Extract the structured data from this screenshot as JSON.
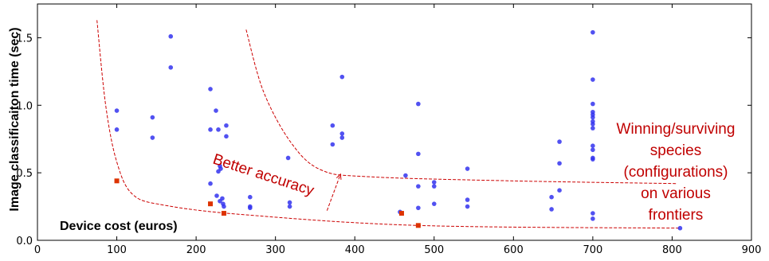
{
  "chart_data": {
    "type": "scatter",
    "title": "",
    "xlabel": "Device cost (euros)",
    "ylabel": "Image classificaiton time (sec)",
    "xlim": [
      0,
      900
    ],
    "ylim": [
      0,
      1.75
    ],
    "xticks": [
      "0",
      "100",
      "200",
      "300",
      "400",
      "500",
      "600",
      "700",
      "800",
      "900"
    ],
    "yticks": [
      "0.0",
      "0.5",
      "1.0",
      "1.5"
    ],
    "grid": false,
    "series": [
      {
        "color": "#3333ee",
        "points": [
          [
            100,
            0.96
          ],
          [
            100,
            0.82
          ],
          [
            100,
            0.44
          ],
          [
            145,
            0.91
          ],
          [
            145,
            0.76
          ],
          [
            168,
            1.51
          ],
          [
            168,
            1.28
          ],
          [
            218,
            1.12
          ],
          [
            218,
            0.82
          ],
          [
            218,
            0.42
          ],
          [
            225,
            0.96
          ],
          [
            228,
            0.82
          ],
          [
            230,
            0.55
          ],
          [
            231,
            0.53
          ],
          [
            228,
            0.51
          ],
          [
            226,
            0.33
          ],
          [
            230,
            0.29
          ],
          [
            233,
            0.31
          ],
          [
            234,
            0.27
          ],
          [
            238,
            0.85
          ],
          [
            238,
            0.77
          ],
          [
            235,
            0.25
          ],
          [
            268,
            0.32
          ],
          [
            268,
            0.25
          ],
          [
            268,
            0.24
          ],
          [
            316,
            0.61
          ],
          [
            318,
            0.28
          ],
          [
            318,
            0.25
          ],
          [
            372,
            0.85
          ],
          [
            372,
            0.71
          ],
          [
            384,
            1.21
          ],
          [
            384,
            0.79
          ],
          [
            384,
            0.76
          ],
          [
            457,
            0.21
          ],
          [
            464,
            0.48
          ],
          [
            480,
            1.01
          ],
          [
            480,
            0.64
          ],
          [
            480,
            0.4
          ],
          [
            480,
            0.24
          ],
          [
            500,
            0.43
          ],
          [
            500,
            0.4
          ],
          [
            500,
            0.27
          ],
          [
            542,
            0.53
          ],
          [
            542,
            0.3
          ],
          [
            542,
            0.25
          ],
          [
            648,
            0.32
          ],
          [
            648,
            0.23
          ],
          [
            658,
            0.73
          ],
          [
            658,
            0.57
          ],
          [
            658,
            0.37
          ],
          [
            700,
            1.54
          ],
          [
            700,
            1.19
          ],
          [
            700,
            1.01
          ],
          [
            700,
            0.95
          ],
          [
            700,
            0.93
          ],
          [
            700,
            0.91
          ],
          [
            700,
            0.88
          ],
          [
            700,
            0.86
          ],
          [
            700,
            0.83
          ],
          [
            700,
            0.7
          ],
          [
            700,
            0.67
          ],
          [
            700,
            0.61
          ],
          [
            700,
            0.6
          ],
          [
            700,
            0.2
          ],
          [
            700,
            0.16
          ],
          [
            810,
            0.09
          ]
        ]
      },
      {
        "color": "#dd3300",
        "marker": "square",
        "points": [
          [
            100,
            0.44
          ],
          [
            218,
            0.27
          ],
          [
            235,
            0.2
          ],
          [
            459,
            0.2
          ],
          [
            480,
            0.11
          ]
        ]
      }
    ],
    "annotations": [
      "Better accuracy",
      "Winning/surviving",
      "species",
      "(configurations)",
      "on various",
      "frontiers"
    ],
    "frontier_curves": [
      [
        [
          75,
          1.63
        ],
        [
          86,
          1.0
        ],
        [
          100,
          0.58
        ],
        [
          120,
          0.34
        ],
        [
          160,
          0.26
        ],
        [
          260,
          0.19
        ],
        [
          480,
          0.11
        ],
        [
          810,
          0.09
        ]
      ],
      [
        [
          263,
          1.56
        ],
        [
          285,
          1.1
        ],
        [
          320,
          0.72
        ],
        [
          358,
          0.52
        ],
        [
          420,
          0.47
        ],
        [
          600,
          0.44
        ],
        [
          805,
          0.42
        ]
      ]
    ],
    "arrow": {
      "from": [
        365,
        0.22
      ],
      "to": [
        382,
        0.49
      ]
    }
  }
}
